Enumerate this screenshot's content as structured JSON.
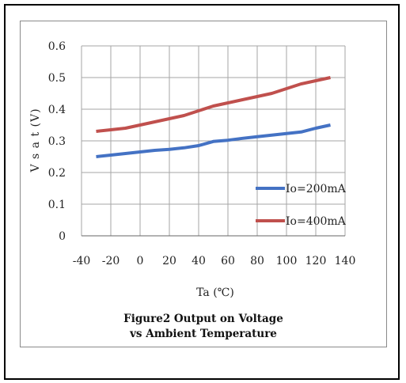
{
  "chart_data": {
    "type": "line",
    "xlabel": "Ta (℃)",
    "ylabel": "V s a t (V)",
    "xlim": [
      -40,
      140
    ],
    "ylim": [
      0,
      0.6
    ],
    "xticks": [
      "-40",
      "-20",
      "0",
      "20",
      "40",
      "60",
      "80",
      "100",
      "120",
      "140"
    ],
    "yticks": [
      "0",
      "0.1",
      "0.2",
      "0.3",
      "0.4",
      "0.5",
      "0.6"
    ],
    "grid": true,
    "legend_position": "right",
    "series": [
      {
        "name": "Io=200mA",
        "color": "#4472c4",
        "x": [
          -30,
          -20,
          -10,
          0,
          10,
          20,
          30,
          40,
          50,
          60,
          70,
          80,
          90,
          100,
          110,
          120,
          130
        ],
        "y": [
          0.25,
          0.255,
          0.26,
          0.265,
          0.27,
          0.273,
          0.278,
          0.285,
          0.298,
          0.302,
          0.308,
          0.313,
          0.318,
          0.323,
          0.328,
          0.34,
          0.35
        ]
      },
      {
        "name": "Io=400mA",
        "color": "#c0504d",
        "x": [
          -30,
          -20,
          -10,
          0,
          10,
          20,
          30,
          40,
          50,
          60,
          70,
          80,
          90,
          100,
          110,
          120,
          130
        ],
        "y": [
          0.33,
          0.335,
          0.34,
          0.35,
          0.36,
          0.37,
          0.38,
          0.395,
          0.41,
          0.42,
          0.43,
          0.44,
          0.45,
          0.465,
          0.48,
          0.49,
          0.5
        ]
      }
    ]
  },
  "caption": {
    "line1": "Figure2  Output on Voltage",
    "line2": "vs Ambient Temperature"
  }
}
